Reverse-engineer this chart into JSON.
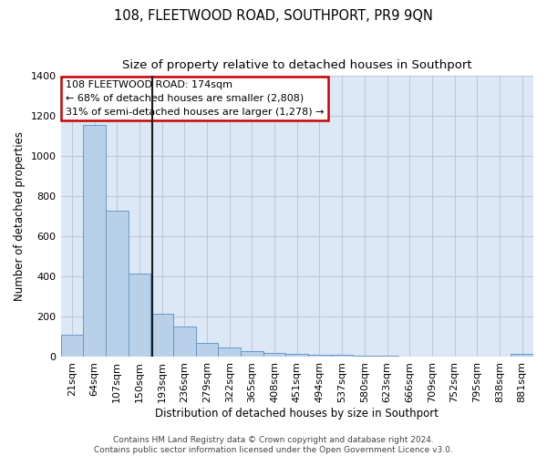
{
  "title": "108, FLEETWOOD ROAD, SOUTHPORT, PR9 9QN",
  "subtitle": "Size of property relative to detached houses in Southport",
  "xlabel": "Distribution of detached houses by size in Southport",
  "ylabel": "Number of detached properties",
  "categories": [
    "21sqm",
    "64sqm",
    "107sqm",
    "150sqm",
    "193sqm",
    "236sqm",
    "279sqm",
    "322sqm",
    "365sqm",
    "408sqm",
    "451sqm",
    "494sqm",
    "537sqm",
    "580sqm",
    "623sqm",
    "666sqm",
    "709sqm",
    "752sqm",
    "795sqm",
    "838sqm",
    "881sqm"
  ],
  "bar_values": [
    110,
    1155,
    730,
    415,
    215,
    150,
    70,
    48,
    30,
    18,
    15,
    10,
    10,
    5,
    5,
    0,
    0,
    0,
    0,
    0,
    15
  ],
  "property_size": 174,
  "annotation_text": "108 FLEETWOOD ROAD: 174sqm\n← 68% of detached houses are smaller (2,808)\n31% of semi-detached houses are larger (1,278) →",
  "bar_color": "#b8d0e8",
  "bar_edge_color": "#6699cc",
  "bar_face_alpha": 0.6,
  "annotation_box_color": "#ffffff",
  "annotation_box_edge_color": "#cc0000",
  "marker_line_color": "#1a1a1a",
  "background_color": "#ffffff",
  "plot_bg_color": "#dce8f5",
  "grid_color": "#c0c8d8",
  "footer_text": "Contains HM Land Registry data © Crown copyright and database right 2024.\nContains public sector information licensed under the Open Government Licence v3.0.",
  "ylim": [
    0,
    1400
  ],
  "yticks": [
    0,
    200,
    400,
    600,
    800,
    1000,
    1200,
    1400
  ],
  "title_fontsize": 10.5,
  "subtitle_fontsize": 9.5,
  "label_fontsize": 8.5,
  "tick_fontsize": 8,
  "annotation_fontsize": 8,
  "footer_fontsize": 6.5
}
